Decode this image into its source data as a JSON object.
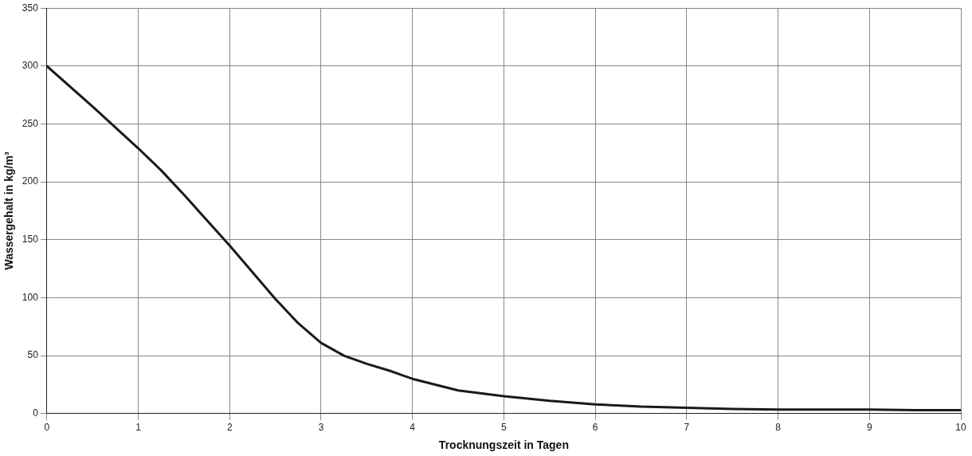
{
  "chart_data": {
    "type": "line",
    "xlabel": "Trocknungszeit in Tagen",
    "ylabel": "Wassergehalt in kg/m³",
    "x": [
      0,
      0.5,
      1,
      1.25,
      1.5,
      2,
      2.25,
      2.5,
      2.75,
      3,
      3.25,
      3.5,
      3.75,
      4,
      4.5,
      5,
      5.5,
      6,
      6.5,
      7,
      7.5,
      8,
      8.5,
      9,
      9.5,
      10
    ],
    "series": [
      {
        "color": "#1a1a1a",
        "values": [
          300,
          265,
          229,
          210,
          189,
          145,
          122,
          99,
          78,
          61,
          50,
          43,
          37,
          30,
          20,
          15,
          11,
          8,
          6,
          5,
          4,
          3.5,
          3.5,
          3.5,
          3,
          3
        ]
      }
    ],
    "xlim": [
      0,
      10
    ],
    "xticks": [
      0,
      1,
      2,
      3,
      4,
      5,
      6,
      7,
      8,
      9,
      10
    ],
    "ylim": [
      0,
      350
    ],
    "yticks": [
      0,
      50,
      100,
      150,
      200,
      250,
      300,
      350
    ],
    "grid": true,
    "legend": false,
    "marker": "none",
    "line_style": "solid"
  }
}
